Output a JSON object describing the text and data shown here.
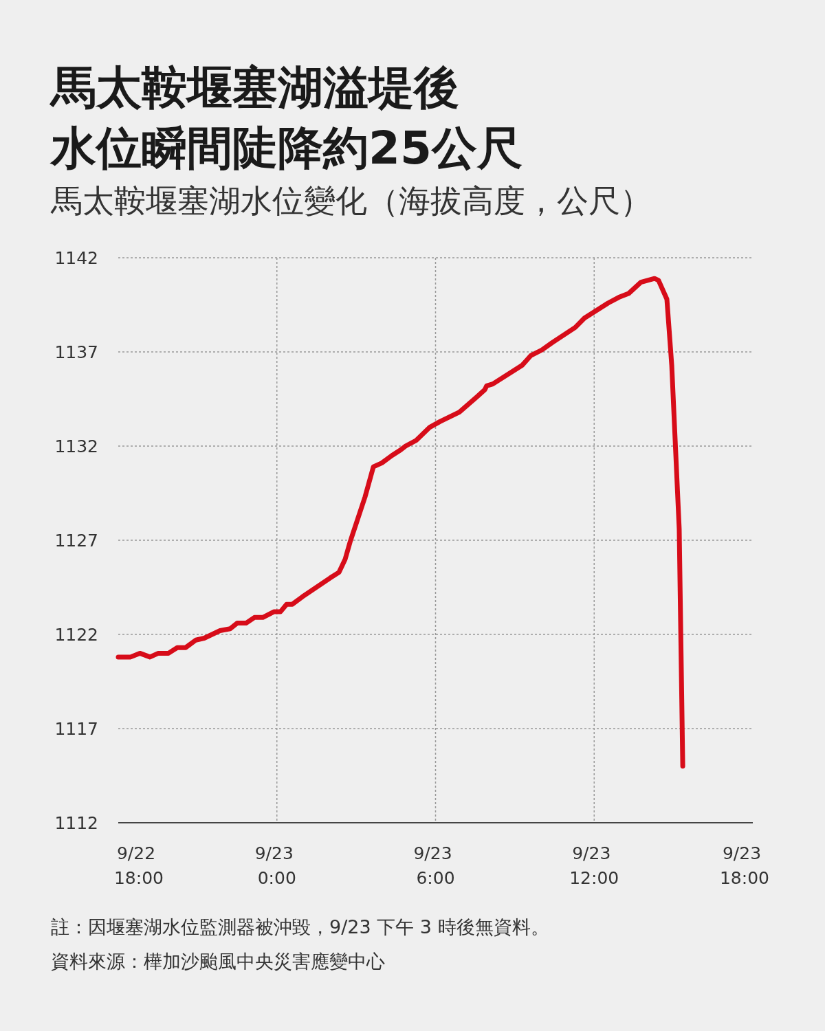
{
  "chart_data": {
    "type": "line",
    "title": "馬太鞍堰塞湖溢堤後水位瞬間陡降約25公尺",
    "subtitle": "馬太鞍堰塞湖水位變化（海拔高度，公尺）",
    "x": [
      "--09-22T18:00",
      "--09-22T18:28",
      "--09-22T18:49",
      "--09-22T19:12",
      "--09-22T19:31",
      "--09-22T19:54",
      "--09-22T20:14",
      "--09-22T20:33",
      "--09-22T20:56",
      "--09-22T21:15",
      "--09-22T21:51",
      "--09-22T22:14",
      "--09-22T22:30",
      "--09-22T22:50",
      "--09-22T23:09",
      "--09-22T23:28",
      "--09-22T23:53",
      "--09-23T00:08",
      "--09-23T00:22",
      "--09-23T00:35",
      "--09-23T00:58",
      "--09-23T02:01",
      "--09-23T02:21",
      "--09-23T02:35",
      "--09-23T02:46",
      "--09-23T03:20",
      "--09-23T03:39",
      "--09-23T03:58",
      "--09-23T04:21",
      "--09-23T04:41",
      "--09-23T04:52",
      "--09-23T05:16",
      "--09-23T05:47",
      "--09-23T06:10",
      "--09-23T06:54",
      "--09-23T07:33",
      "--09-23T07:52",
      "--09-23T07:56",
      "--09-23T08:10",
      "--09-23T09:17",
      "--09-23T09:36",
      "--09-23T10:01",
      "--09-23T10:25",
      "--09-23T11:17",
      "--09-23T11:38",
      "--09-23T12:32",
      "--09-23T12:56",
      "--09-23T13:18",
      "--09-23T13:46",
      "--09-23T14:17",
      "--09-23T14:26",
      "--09-23T14:45",
      "--09-23T14:56",
      "--09-23T15:13",
      "--09-23T15:21"
    ],
    "series": [
      {
        "color": "#d70c19",
        "values": [
          1120.8,
          1120.8,
          1121.0,
          1120.8,
          1121.0,
          1121.0,
          1121.3,
          1121.3,
          1121.7,
          1121.8,
          1122.2,
          1122.3,
          1122.6,
          1122.6,
          1122.9,
          1122.9,
          1123.2,
          1123.2,
          1123.6,
          1123.6,
          1124.0,
          1125.0,
          1125.3,
          1126.0,
          1126.9,
          1129.3,
          1130.9,
          1131.1,
          1131.5,
          1131.8,
          1132.0,
          1132.3,
          1133.0,
          1133.3,
          1133.8,
          1134.6,
          1135.0,
          1135.2,
          1135.3,
          1136.3,
          1136.8,
          1137.1,
          1137.5,
          1138.3,
          1138.8,
          1139.6,
          1139.9,
          1140.1,
          1140.7,
          1140.9,
          1140.8,
          1139.8,
          1136.3,
          1127.6,
          1115.0
        ]
      }
    ],
    "xlim": [
      "--09-22T18:00",
      "--09-23T18:00"
    ],
    "ylim": [
      1112,
      1142
    ],
    "xticks": [
      {
        "value": "--09-22T18:00",
        "label": "9/22 18:00"
      },
      {
        "value": "--09-23T00:00",
        "label": "9/23 0:00"
      },
      {
        "value": "--09-23T06:00",
        "label": "9/23 6:00"
      },
      {
        "value": "--09-23T12:00",
        "label": "9/23 12:00"
      },
      {
        "value": "--09-23T18:00",
        "label": "9/23 18:00"
      }
    ],
    "yticks": [
      1112,
      1117,
      1122,
      1127,
      1132,
      1137,
      1142
    ],
    "grid": true,
    "marker": "none",
    "line_style": "solid",
    "annotations": [
      "註：因堰塞湖水位監測器被沖毀，9/23 下午 3 時後無資料。",
      "資料來源：樺加沙颱風中央災害應變中心"
    ]
  }
}
